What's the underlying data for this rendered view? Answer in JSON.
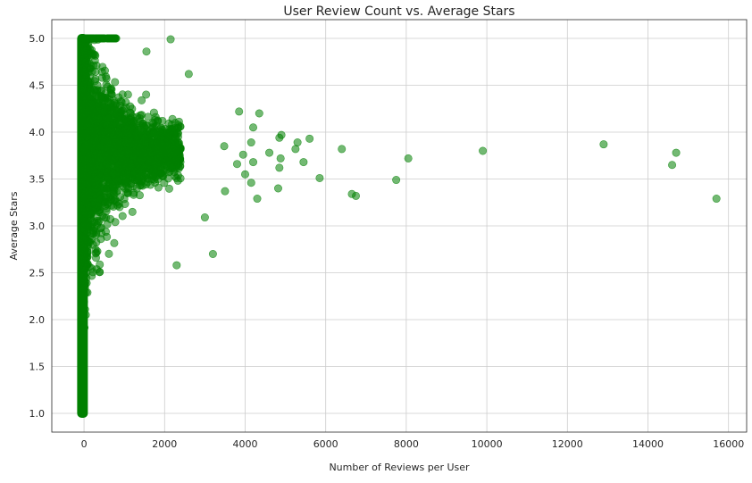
{
  "chart_data": {
    "type": "scatter",
    "title": "User Review Count vs. Average Stars",
    "xlabel": "Number of Reviews per User",
    "ylabel": "Average Stars",
    "xlim": [
      -800,
      16450
    ],
    "ylim": [
      0.8,
      5.2
    ],
    "xticks": [
      0,
      2000,
      4000,
      6000,
      8000,
      10000,
      12000,
      14000,
      16000
    ],
    "yticks": [
      1.0,
      1.5,
      2.0,
      2.5,
      3.0,
      3.5,
      4.0,
      4.5,
      5.0
    ],
    "xtick_labels": [
      "0",
      "2000",
      "4000",
      "6000",
      "8000",
      "10000",
      "12000",
      "14000",
      "16000"
    ],
    "ytick_labels": [
      "1.0",
      "1.5",
      "2.0",
      "2.5",
      "3.0",
      "3.5",
      "4.0",
      "4.5",
      "5.0"
    ],
    "grid": true,
    "marker_color": "#008000",
    "marker_alpha": 0.55,
    "dense_core_description": "Very dense mass of points for users with 0-500 reviews spanning 1.0 to 5.0 stars; spread narrows toward 3.5-4.0 as review count grows.",
    "points": [
      {
        "x": 15700,
        "y": 3.29
      },
      {
        "x": 14700,
        "y": 3.78
      },
      {
        "x": 14600,
        "y": 3.65
      },
      {
        "x": 12900,
        "y": 3.87
      },
      {
        "x": 9900,
        "y": 3.8
      },
      {
        "x": 8050,
        "y": 3.72
      },
      {
        "x": 7750,
        "y": 3.49
      },
      {
        "x": 6750,
        "y": 3.32
      },
      {
        "x": 6650,
        "y": 3.34
      },
      {
        "x": 6400,
        "y": 3.82
      },
      {
        "x": 5850,
        "y": 3.51
      },
      {
        "x": 5600,
        "y": 3.93
      },
      {
        "x": 5450,
        "y": 3.68
      },
      {
        "x": 5300,
        "y": 3.89
      },
      {
        "x": 5250,
        "y": 3.82
      },
      {
        "x": 4900,
        "y": 3.97
      },
      {
        "x": 4880,
        "y": 3.72
      },
      {
        "x": 4850,
        "y": 3.94
      },
      {
        "x": 4820,
        "y": 3.4
      },
      {
        "x": 4850,
        "y": 3.62
      },
      {
        "x": 4600,
        "y": 3.78
      },
      {
        "x": 4350,
        "y": 4.2
      },
      {
        "x": 4300,
        "y": 3.29
      },
      {
        "x": 4200,
        "y": 4.05
      },
      {
        "x": 4200,
        "y": 3.68
      },
      {
        "x": 4150,
        "y": 3.46
      },
      {
        "x": 4150,
        "y": 3.89
      },
      {
        "x": 4000,
        "y": 3.55
      },
      {
        "x": 3950,
        "y": 3.76
      },
      {
        "x": 3850,
        "y": 4.22
      },
      {
        "x": 3800,
        "y": 3.66
      },
      {
        "x": 3500,
        "y": 3.37
      },
      {
        "x": 3480,
        "y": 3.85
      },
      {
        "x": 3200,
        "y": 2.7
      },
      {
        "x": 3000,
        "y": 3.09
      },
      {
        "x": 2300,
        "y": 2.58
      },
      {
        "x": 2600,
        "y": 4.62
      },
      {
        "x": 2150,
        "y": 4.99
      },
      {
        "x": 1550,
        "y": 4.86
      }
    ]
  }
}
